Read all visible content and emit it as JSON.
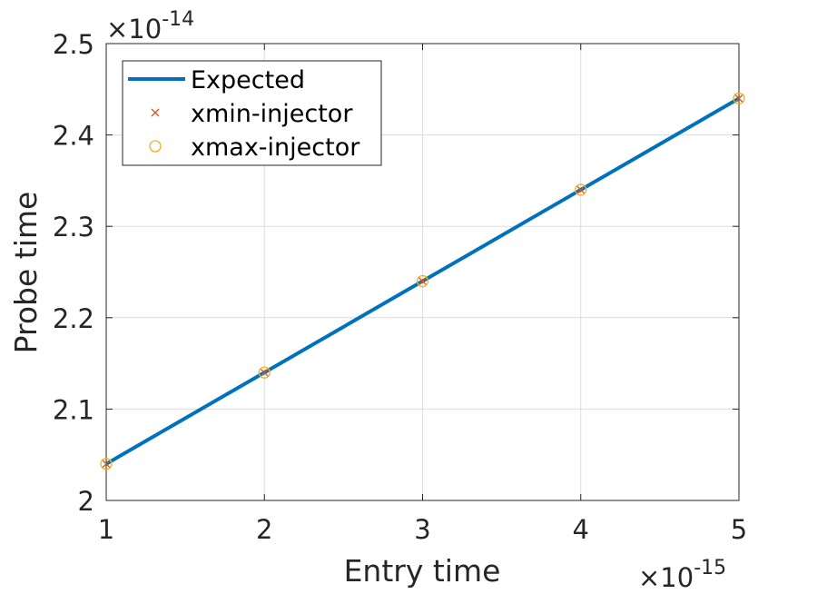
{
  "chart_data": {
    "type": "line",
    "xlabel": "Entry time",
    "ylabel": "Probe time",
    "x_exponent_label": {
      "base": "×10",
      "exp": "-15"
    },
    "y_exponent_label": {
      "base": "×10",
      "exp": "-14"
    },
    "xlim": [
      1,
      5
    ],
    "ylim": [
      2.0,
      2.5
    ],
    "x_ticks": [
      1,
      2,
      3,
      4,
      5
    ],
    "x_tick_labels": [
      "1",
      "2",
      "3",
      "4",
      "5"
    ],
    "y_ticks": [
      2.0,
      2.1,
      2.2,
      2.3,
      2.4,
      2.5
    ],
    "y_tick_labels": [
      "2",
      "2.1",
      "2.2",
      "2.3",
      "2.4",
      "2.5"
    ],
    "grid": true,
    "legend_position": "top-left",
    "series": [
      {
        "name": "Expected",
        "style": "line",
        "color": "#0072BD",
        "x": [
          1,
          5
        ],
        "y": [
          2.04,
          2.44
        ]
      },
      {
        "name": "xmin-injector",
        "style": "x-marker",
        "color": "#D95319",
        "x": [
          1,
          2,
          3,
          4,
          5
        ],
        "y": [
          2.04,
          2.14,
          2.24,
          2.34,
          2.44
        ]
      },
      {
        "name": "xmax-injector",
        "style": "circle-marker",
        "color": "#EDB120",
        "x": [
          1,
          2,
          3,
          4,
          5
        ],
        "y": [
          2.04,
          2.14,
          2.24,
          2.34,
          2.44
        ]
      }
    ]
  }
}
